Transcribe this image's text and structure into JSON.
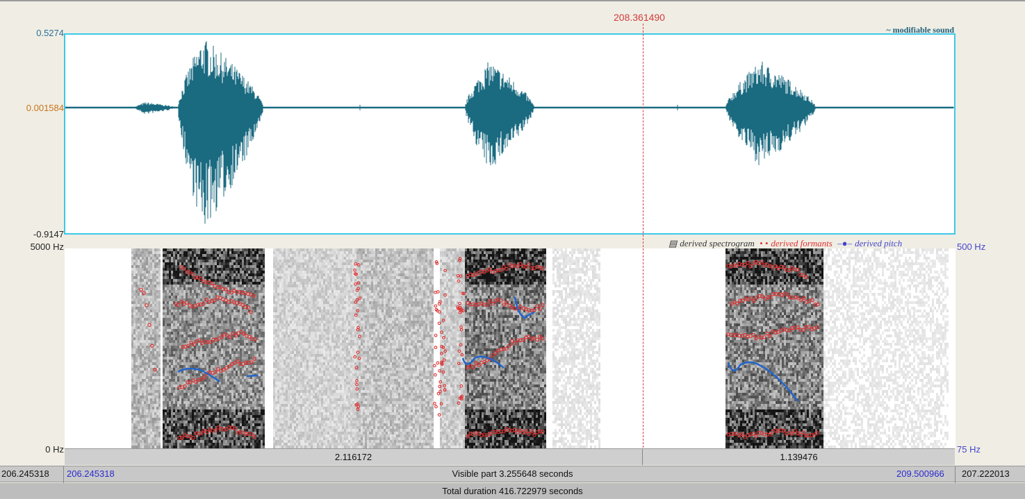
{
  "cursor": {
    "time": "208.361490"
  },
  "waveform": {
    "title": "~ modifiable sound",
    "y_max": "0.5274",
    "y_mid": "0.001584",
    "y_min": "-0.9147",
    "color": "#1a6a80",
    "frame_color": "#3cc8e8"
  },
  "spectrogram": {
    "freq_top": "5000 Hz",
    "freq_bottom": "0 Hz",
    "pitch_top": "500 Hz",
    "pitch_bottom": "75 Hz",
    "legend": {
      "spectrogram": "derived spectrogram",
      "formants": "derived formants",
      "pitch": "derived pitch"
    },
    "formant_color": "#e03030",
    "pitch_color": "#2266cc"
  },
  "segments": [
    {
      "duration": "2.116172"
    },
    {
      "duration": "1.139476"
    }
  ],
  "timebar": {
    "left_total": "206.245318",
    "visible_start": "206.245318",
    "visible_part": "Visible part 3.255648 seconds",
    "visible_end": "209.500966",
    "right_total": "207.222013",
    "total_duration": "Total duration 416.722979 seconds"
  }
}
